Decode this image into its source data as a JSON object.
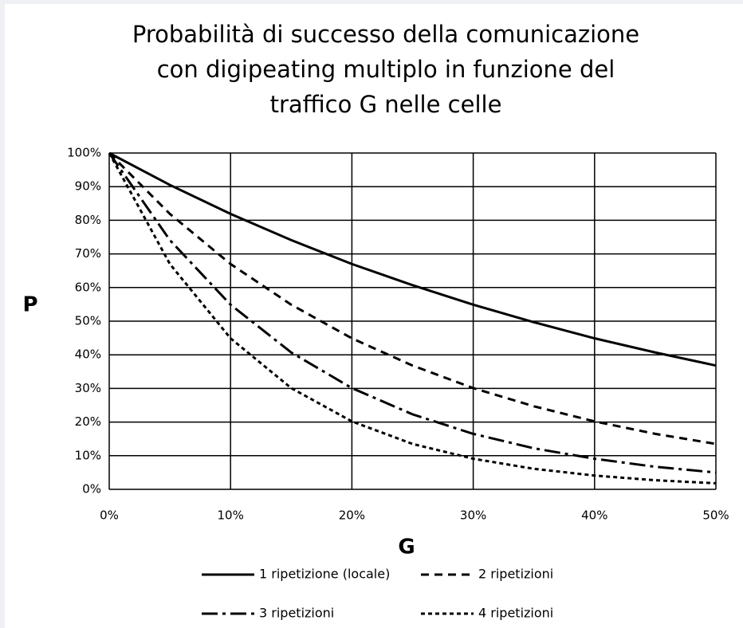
{
  "chart_data": {
    "type": "line",
    "title": [
      "Probabilità di successo della comunicazione",
      "con digipeating multiplo in funzione del",
      "traffico G nelle celle"
    ],
    "xlabel": "G",
    "ylabel": "P",
    "x": [
      0,
      5,
      10,
      15,
      20,
      25,
      30,
      35,
      40,
      45,
      50
    ],
    "series": [
      {
        "name": "1 ripetizione (locale)",
        "color": "#000000",
        "dash": "none",
        "values": [
          100,
          90.5,
          81.9,
          74.1,
          67.0,
          60.7,
          54.9,
          49.7,
          44.9,
          40.7,
          36.8
        ]
      },
      {
        "name": "2 ripetizioni",
        "color": "#000000",
        "dash": "10,7",
        "values": [
          100,
          81.9,
          67.0,
          54.9,
          44.9,
          36.8,
          30.1,
          24.7,
          20.2,
          16.5,
          13.5
        ]
      },
      {
        "name": "3 ripetizioni",
        "color": "#000000",
        "dash": "20,6,4,6",
        "values": [
          100,
          74.1,
          54.9,
          40.7,
          30.1,
          22.3,
          16.5,
          12.2,
          9.1,
          6.7,
          5.0
        ]
      },
      {
        "name": "4 ripetizioni",
        "color": "#000000",
        "dash": "5,4",
        "values": [
          100,
          67.0,
          44.9,
          30.1,
          20.2,
          13.5,
          9.1,
          6.1,
          4.1,
          2.7,
          1.8
        ]
      }
    ],
    "xlim": [
      0,
      50
    ],
    "ylim": [
      0,
      100
    ],
    "xticks": [
      {
        "value": 0,
        "label": "0%"
      },
      {
        "value": 10,
        "label": "10%"
      },
      {
        "value": 20,
        "label": "20%"
      },
      {
        "value": 30,
        "label": "30%"
      },
      {
        "value": 40,
        "label": "40%"
      },
      {
        "value": 50,
        "label": "50%"
      }
    ],
    "yticks": [
      {
        "value": 0,
        "label": "0%"
      },
      {
        "value": 10,
        "label": "10%"
      },
      {
        "value": 20,
        "label": "20%"
      },
      {
        "value": 30,
        "label": "30%"
      },
      {
        "value": 40,
        "label": "40%"
      },
      {
        "value": 50,
        "label": "50%"
      },
      {
        "value": 60,
        "label": "60%"
      },
      {
        "value": 70,
        "label": "70%"
      },
      {
        "value": 80,
        "label": "80%"
      },
      {
        "value": 90,
        "label": "90%"
      },
      {
        "value": 100,
        "label": "100%"
      }
    ],
    "grid": true
  }
}
